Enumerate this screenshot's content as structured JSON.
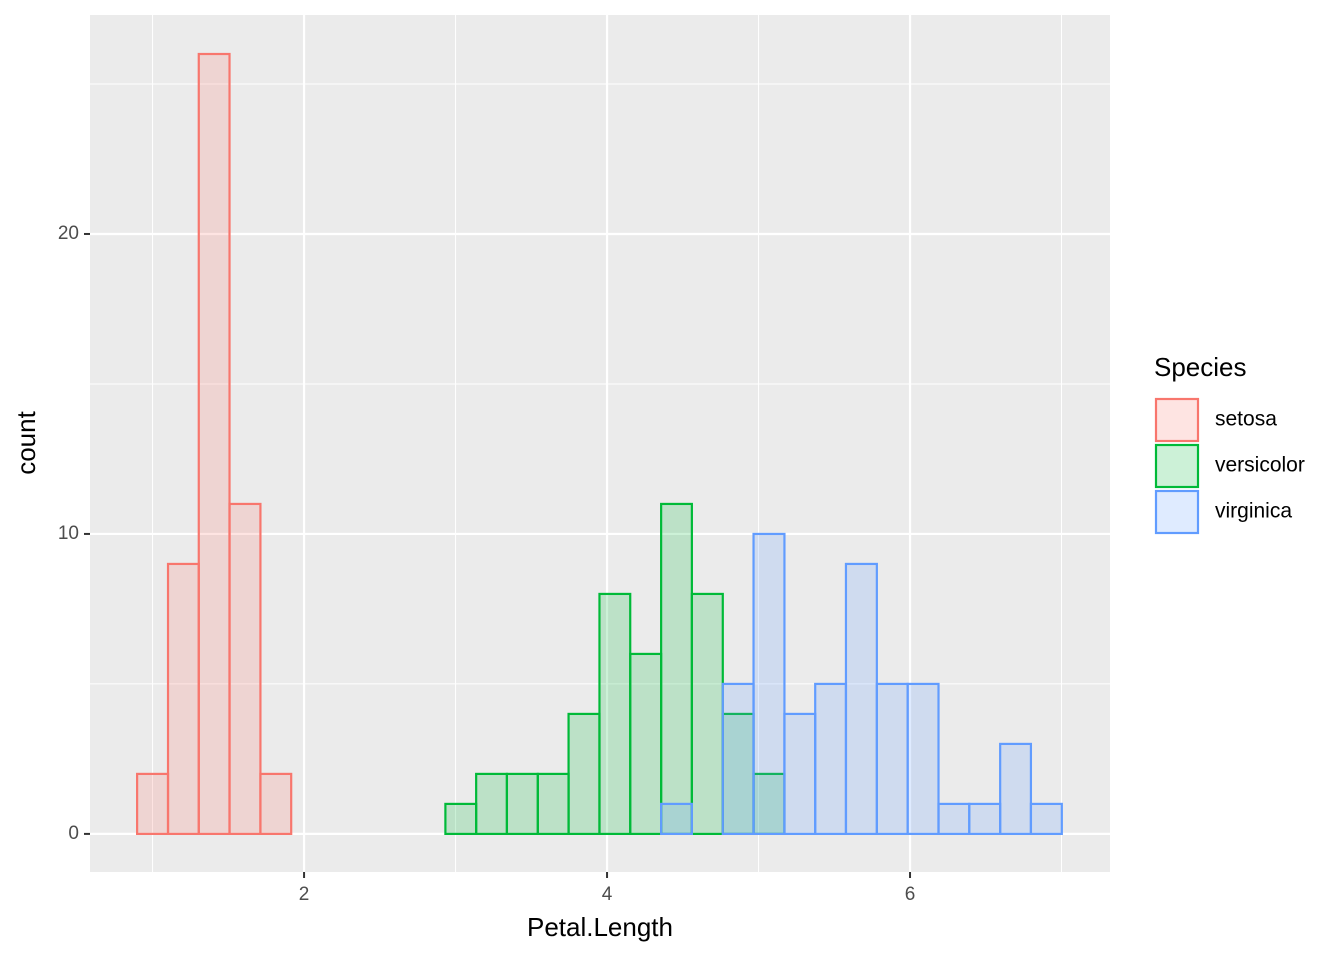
{
  "chart_data": {
    "type": "histogram",
    "x_label": "Petal.Length",
    "y_label": "count",
    "legend_title": "Species",
    "bins": [
      0.898,
      1.102,
      1.305,
      1.508,
      1.712,
      1.915,
      2.119,
      2.322,
      2.526,
      2.729,
      2.933,
      3.136,
      3.339,
      3.543,
      3.746,
      3.95,
      4.153,
      4.357,
      4.56,
      4.764,
      4.967,
      5.171,
      5.374,
      5.577,
      5.781,
      5.984,
      6.188,
      6.391,
      6.595,
      6.798,
      7.002
    ],
    "series": [
      {
        "name": "setosa",
        "color": "#F8766D",
        "values": [
          2,
          9,
          26,
          11,
          2,
          0,
          0,
          0,
          0,
          0,
          0,
          0,
          0,
          0,
          0,
          0,
          0,
          0,
          0,
          0,
          0,
          0,
          0,
          0,
          0,
          0,
          0,
          0,
          0,
          0
        ]
      },
      {
        "name": "versicolor",
        "color": "#00BA38",
        "values": [
          0,
          0,
          0,
          0,
          0,
          0,
          0,
          0,
          0,
          0,
          1,
          2,
          2,
          2,
          4,
          8,
          6,
          11,
          8,
          4,
          2,
          0,
          0,
          0,
          0,
          0,
          0,
          0,
          0,
          0
        ]
      },
      {
        "name": "virginica",
        "color": "#619CFF",
        "values": [
          0,
          0,
          0,
          0,
          0,
          0,
          0,
          0,
          0,
          0,
          0,
          0,
          0,
          0,
          0,
          0,
          0,
          1,
          0,
          5,
          10,
          4,
          5,
          9,
          5,
          5,
          1,
          1,
          3,
          1
        ]
      }
    ],
    "fill_opacity": 0.2,
    "xlim": [
      0.587,
      7.32
    ],
    "ylim": [
      -1.27,
      27.3
    ],
    "xticks": [
      2,
      4,
      6
    ],
    "yticks": [
      0,
      10,
      20
    ],
    "x_minor_grid": [
      1,
      3,
      5,
      7
    ],
    "y_minor_grid": [
      5,
      15,
      25
    ],
    "grid": true,
    "legend": "right"
  }
}
